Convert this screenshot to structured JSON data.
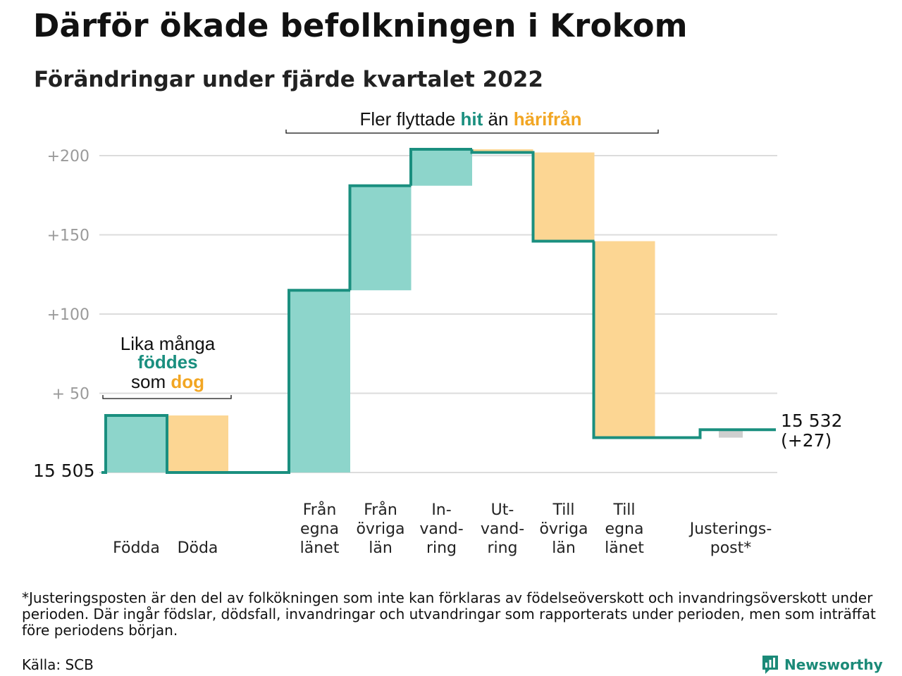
{
  "header": {
    "title": "Därför ökade befolkningen i Krokom",
    "subtitle": "Förändringar under fjärde kvartalet 2022"
  },
  "colors": {
    "in": "#8dd5cb",
    "out": "#fcd693",
    "adjust": "#cfcfcf",
    "line": "#1a8f7f",
    "grid": "#dcdcdc",
    "hit_text": "#1a8f7f",
    "har_text": "#f2a623"
  },
  "annotations": {
    "migration": {
      "text_before": "Fler flyttade ",
      "hit": "hit",
      "middle": " än ",
      "harifran": "härifrån"
    },
    "births": {
      "line1": "Lika många",
      "line2": "föddes",
      "line3_prefix": "som ",
      "line3_word": "dog"
    }
  },
  "chart_data": {
    "type": "waterfall",
    "title": "Därför ökade befolkningen i Krokom",
    "subtitle": "Förändringar under fjärde kvartalet 2022",
    "start_value": 15505,
    "start_label": "15 505",
    "end_label": "15 532",
    "end_change_label": "(+27)",
    "ylim": [
      0,
      200
    ],
    "yticks": [
      {
        "value": 200,
        "label": "+200"
      },
      {
        "value": 150,
        "label": "+150"
      },
      {
        "value": 100,
        "label": "+100"
      },
      {
        "value": 50,
        "label": "+ 50"
      }
    ],
    "grid": true,
    "steps": [
      {
        "label_lines": [
          "Födda"
        ],
        "kind": "in",
        "from": 0,
        "to": 36
      },
      {
        "label_lines": [
          "Döda"
        ],
        "kind": "out",
        "from": 36,
        "to": 0
      },
      {
        "label_lines": [
          "Från",
          "egna",
          "länet"
        ],
        "kind": "in",
        "from": 0,
        "to": 115
      },
      {
        "label_lines": [
          "Från",
          "övriga",
          "län"
        ],
        "kind": "in",
        "from": 115,
        "to": 181
      },
      {
        "label_lines": [
          "In-",
          "vand-",
          "ring"
        ],
        "kind": "in",
        "from": 181,
        "to": 204
      },
      {
        "label_lines": [
          "Ut-",
          "vand-",
          "ring"
        ],
        "kind": "out",
        "from": 204,
        "to": 202
      },
      {
        "label_lines": [
          "Till",
          "övriga",
          "län"
        ],
        "kind": "out",
        "from": 202,
        "to": 146
      },
      {
        "label_lines": [
          "Till",
          "egna",
          "länet"
        ],
        "kind": "out",
        "from": 146,
        "to": 22
      },
      {
        "label_lines": [
          "Justerings-",
          "post*"
        ],
        "kind": "adjust",
        "from": 22,
        "to": 27
      }
    ]
  },
  "footer": {
    "footnote": "*Justeringsposten är den del av folkökningen som inte kan förklaras av födelseöverskott och invandringsöverskott under perioden. Där ingår födslar, dödsfall, invandringar och utvandringar som rapporterats under perioden, men som inträffat före periodens början.",
    "source": "Källa: SCB",
    "brand": "Newsworthy",
    "brand_icon": "newsworthy-logo-icon"
  }
}
